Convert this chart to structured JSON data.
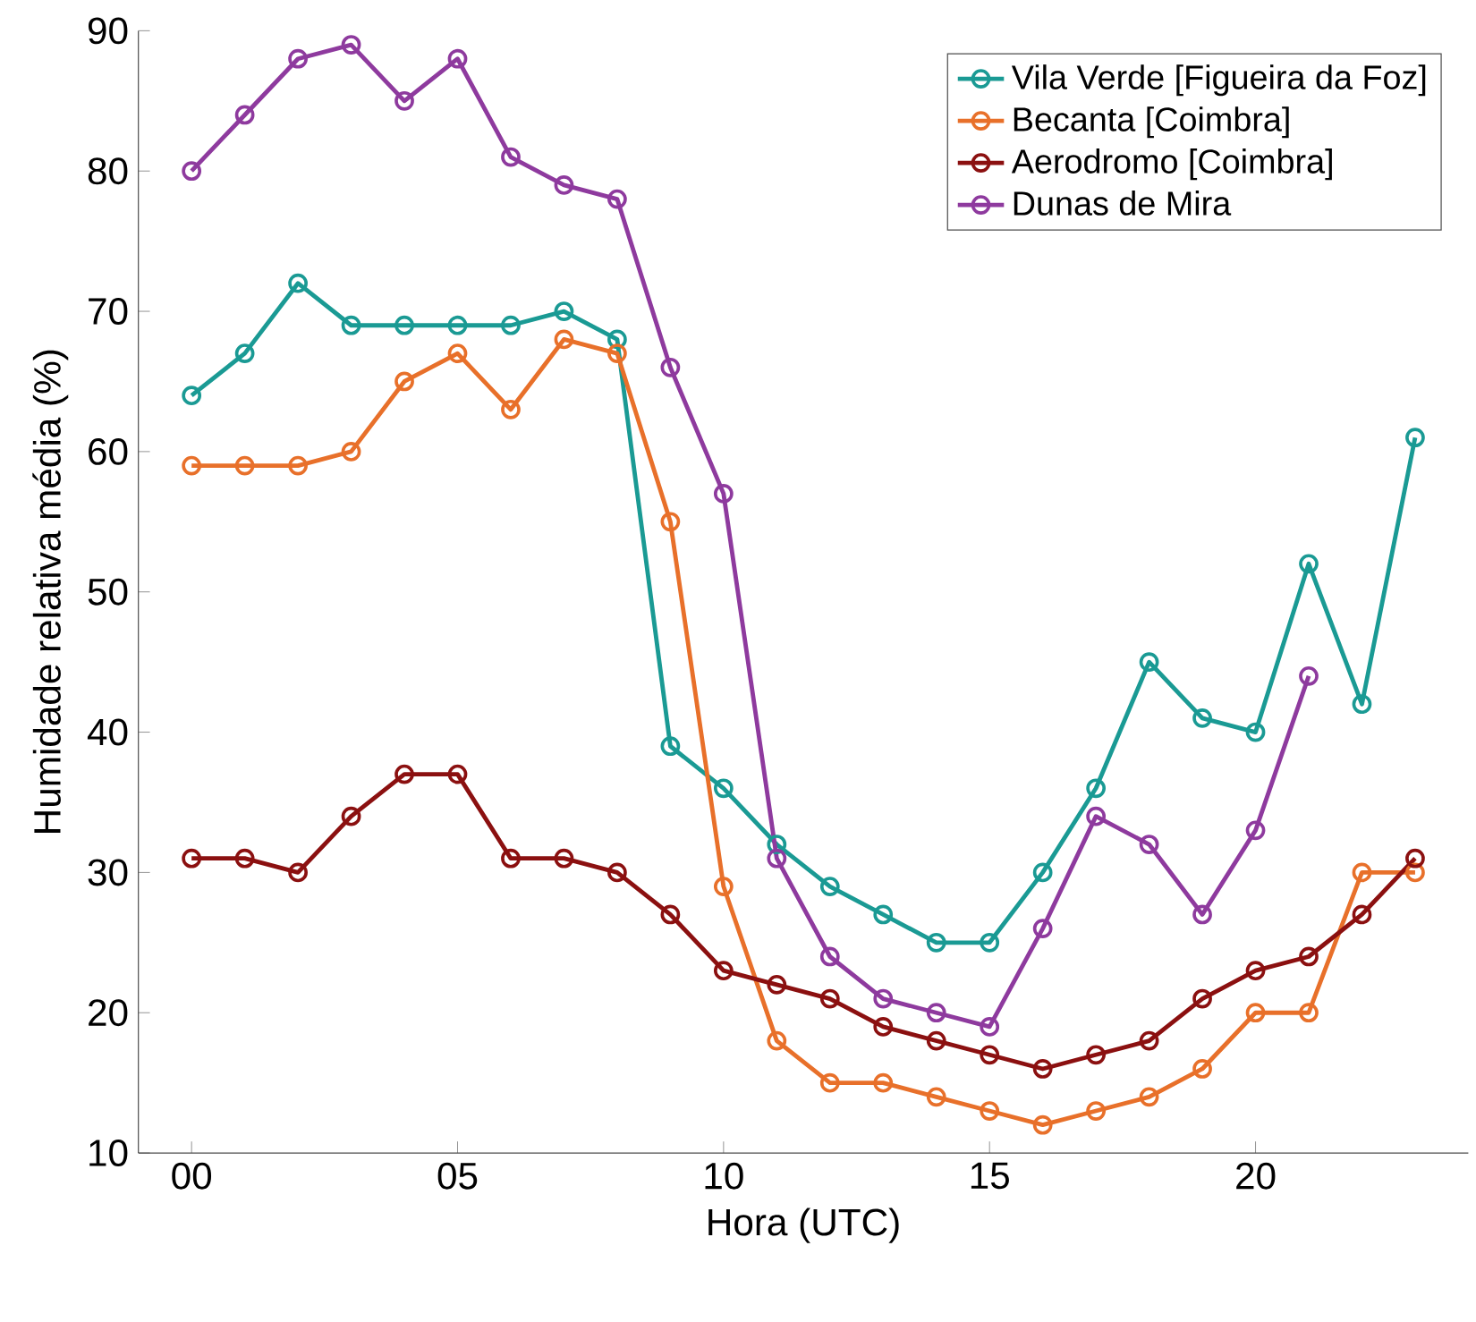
{
  "chart_data": {
    "type": "line",
    "xlabel": "Hora (UTC)",
    "ylabel": "Humidade relativa média (%)",
    "x": [
      0,
      1,
      2,
      3,
      4,
      5,
      6,
      7,
      8,
      9,
      10,
      11,
      12,
      13,
      14,
      15,
      16,
      17,
      18,
      19,
      20,
      21,
      22,
      23
    ],
    "xlim": [
      -1,
      24
    ],
    "xticks": [
      {
        "value": 0,
        "label": "00"
      },
      {
        "value": 5,
        "label": "05"
      },
      10,
      15,
      20
    ],
    "ylim": [
      10,
      90
    ],
    "yticks": [
      10,
      20,
      30,
      40,
      50,
      60,
      70,
      80,
      90
    ],
    "marker": "circle",
    "legend": "top right",
    "grid": false,
    "series": [
      {
        "name": "Vila Verde [Figueira da Foz]",
        "color": "#1a9a94",
        "values": [
          64,
          67,
          72,
          69,
          69,
          69,
          69,
          70,
          68,
          39,
          36,
          32,
          29,
          27,
          25,
          25,
          30,
          36,
          45,
          41,
          40,
          52,
          42,
          61
        ]
      },
      {
        "name": "Becanta [Coimbra]",
        "color": "#e8702a",
        "values": [
          59,
          59,
          59,
          60,
          65,
          67,
          63,
          68,
          67,
          55,
          29,
          18,
          15,
          15,
          14,
          13,
          12,
          13,
          14,
          16,
          20,
          20,
          30,
          30
        ]
      },
      {
        "name": "Aerodromo [Coimbra]",
        "color": "#8b1010",
        "values": [
          31,
          31,
          30,
          34,
          37,
          37,
          31,
          31,
          30,
          27,
          23,
          22,
          21,
          19,
          18,
          17,
          16,
          17,
          18,
          21,
          23,
          24,
          27,
          31
        ]
      },
      {
        "name": "Dunas de Mira",
        "color": "#8e3a9e",
        "values": [
          80,
          84,
          88,
          89,
          85,
          88,
          81,
          79,
          78,
          66,
          57,
          31,
          24,
          21,
          20,
          19,
          26,
          34,
          32,
          27,
          33,
          44,
          null,
          null
        ]
      }
    ]
  }
}
